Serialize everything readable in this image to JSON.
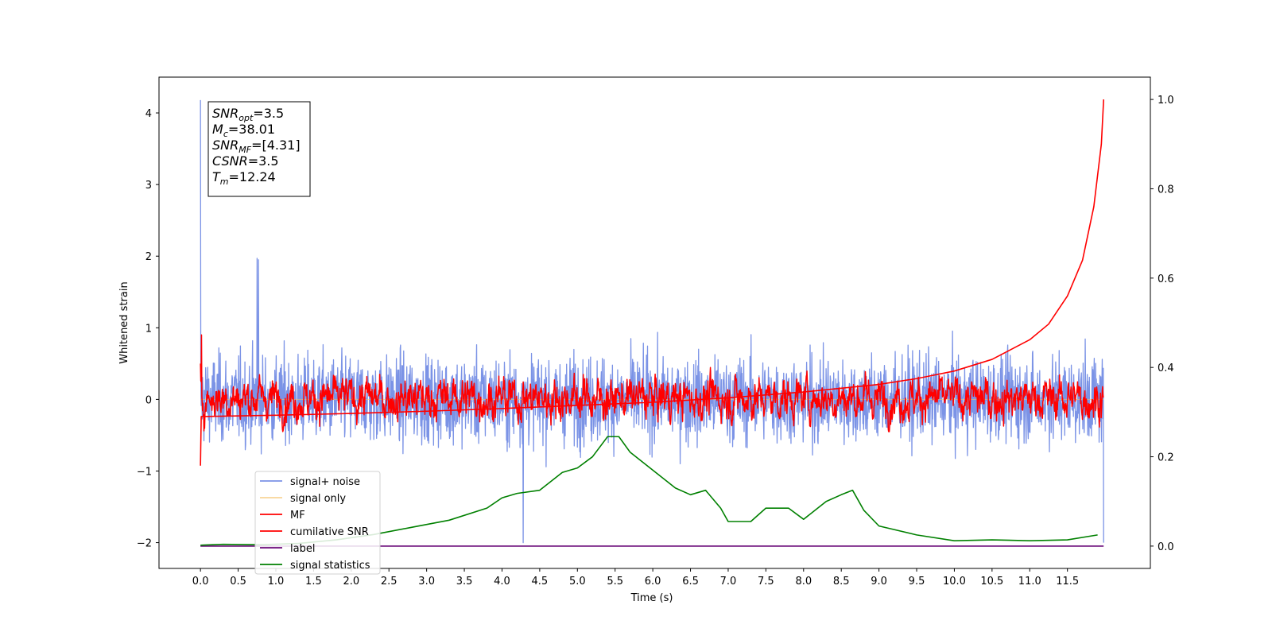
{
  "chart_data": {
    "type": "line",
    "xlabel": "Time (s)",
    "ylabel": "Whitened strain",
    "xlim": [
      -0.55,
      12.6
    ],
    "ylim": [
      -2.36,
      4.5
    ],
    "y2lim": [
      -0.05,
      1.05
    ],
    "x_ticks": [
      "0.0",
      "0.5",
      "1.0",
      "1.5",
      "2.0",
      "2.5",
      "3.0",
      "3.5",
      "4.0",
      "4.5",
      "5.0",
      "5.5",
      "6.0",
      "6.5",
      "7.0",
      "7.5",
      "8.0",
      "8.5",
      "9.0",
      "9.5",
      "10.0",
      "10.5",
      "11.0",
      "11.5"
    ],
    "y_ticks": [
      "4",
      "3",
      "2",
      "1",
      "0",
      "−1",
      "−2"
    ],
    "y2_ticks": [
      "1.0",
      "0.8",
      "0.6",
      "0.4",
      "0.2",
      "0.0"
    ],
    "grid": false,
    "legend_position": "lower-left",
    "annotation": [
      {
        "base": "SNR",
        "sub": "opt",
        "value": "=3.5"
      },
      {
        "base": "M",
        "sub": "c",
        "value": "=38.01"
      },
      {
        "base": "SNR",
        "sub": "MF",
        "value": "=[4.31]"
      },
      {
        "base": "CSNR",
        "sub": "",
        "value": "=3.5"
      },
      {
        "base": "T",
        "sub": "m",
        "value": "=12.24"
      }
    ],
    "series": [
      {
        "name": "signal+ noise",
        "color": "#7b93e6",
        "axis": "left",
        "style": "noise",
        "x_range": [
          0,
          11.98
        ],
        "amplitude_typical": 0.9,
        "spikes": [
          [
            0.0,
            4.18
          ],
          [
            0.75,
            1.97
          ],
          [
            0.77,
            1.95
          ],
          [
            4.28,
            -2.0
          ],
          [
            11.98,
            -2.0
          ]
        ]
      },
      {
        "name": "signal only",
        "color": "#f5c26b",
        "axis": "left",
        "x_range": [
          0,
          11.98
        ],
        "values": 0
      },
      {
        "name": "MF",
        "color": "#ff0000",
        "axis": "left",
        "style": "noise",
        "x_range": [
          0,
          11.98
        ],
        "amplitude_typical": 0.35
      },
      {
        "name": "cumilative SNR",
        "color": "#ff0000",
        "axis": "right",
        "x": [
          0.0,
          0.01,
          1,
          2,
          3,
          4,
          5,
          6,
          7,
          8,
          9,
          9.5,
          10,
          10.5,
          11,
          11.25,
          11.5,
          11.7,
          11.85,
          11.95,
          11.98
        ],
        "y": [
          0.18,
          0.29,
          0.293,
          0.297,
          0.302,
          0.308,
          0.315,
          0.322,
          0.332,
          0.345,
          0.362,
          0.375,
          0.392,
          0.418,
          0.462,
          0.497,
          0.56,
          0.64,
          0.76,
          0.9,
          1.0
        ]
      },
      {
        "name": "label",
        "color": "#6a0a78",
        "axis": "right",
        "x": [
          0.0,
          11.98
        ],
        "y": [
          0.0,
          0.0
        ]
      },
      {
        "name": "signal statistics",
        "color": "#008000",
        "axis": "right",
        "x": [
          0.0,
          0.3,
          0.8,
          1.3,
          1.8,
          2.3,
          2.8,
          3.3,
          3.8,
          4.0,
          4.2,
          4.5,
          4.8,
          5.0,
          5.2,
          5.4,
          5.55,
          5.7,
          6.0,
          6.3,
          6.5,
          6.7,
          6.9,
          7.0,
          7.3,
          7.5,
          7.8,
          8.0,
          8.3,
          8.5,
          8.65,
          8.8,
          9.0,
          9.5,
          10.0,
          10.5,
          11.0,
          11.5,
          11.9
        ],
        "y": [
          0.002,
          0.004,
          0.003,
          0.006,
          0.014,
          0.026,
          0.042,
          0.058,
          0.085,
          0.108,
          0.118,
          0.125,
          0.165,
          0.175,
          0.2,
          0.245,
          0.245,
          0.21,
          0.17,
          0.13,
          0.115,
          0.125,
          0.085,
          0.055,
          0.055,
          0.085,
          0.085,
          0.06,
          0.1,
          0.115,
          0.125,
          0.08,
          0.045,
          0.025,
          0.012,
          0.014,
          0.012,
          0.014,
          0.025
        ]
      }
    ]
  }
}
